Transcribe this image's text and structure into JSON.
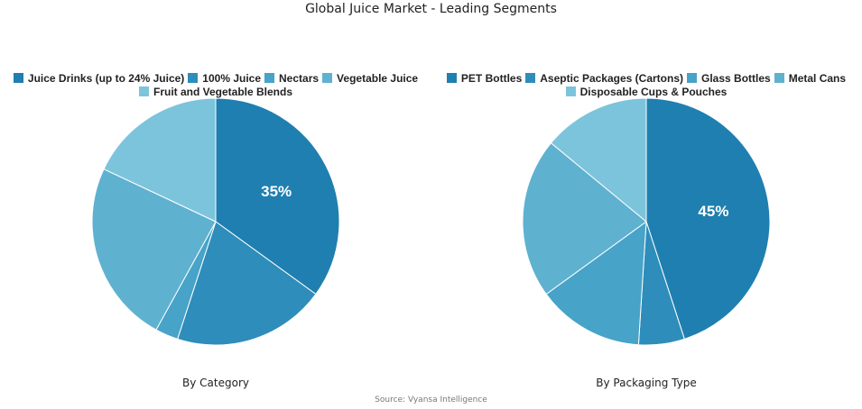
{
  "title": "Global Juice Market - Leading Segments",
  "source": "Source: Vyansa Intelligence",
  "chart_data": [
    {
      "type": "pie",
      "subtitle": "By Category",
      "categories": [
        "Juice Drinks (up to 24% Juice)",
        "100% Juice",
        "Nectars",
        "Vegetable Juice",
        "Fruit and Vegetable Blends"
      ],
      "values": [
        35,
        20,
        3,
        24,
        18
      ],
      "colors": [
        "#1f7fb0",
        "#2e8dba",
        "#47a3c8",
        "#5fb1d0",
        "#7cc4dc"
      ],
      "data_labels": [
        "35%",
        "",
        "",
        "",
        ""
      ],
      "legend": "top"
    },
    {
      "type": "pie",
      "subtitle": "By Packaging Type",
      "categories": [
        "PET Bottles",
        "Aseptic Packages (Cartons)",
        "Glass Bottles",
        "Metal Cans",
        "Disposable Cups & Pouches"
      ],
      "values": [
        45,
        6,
        14,
        21,
        14
      ],
      "colors": [
        "#1f7fb0",
        "#2e8dba",
        "#47a3c8",
        "#5fb1d0",
        "#7cc4dc"
      ],
      "data_labels": [
        "45%",
        "",
        "",
        "",
        ""
      ],
      "legend": "top"
    }
  ]
}
